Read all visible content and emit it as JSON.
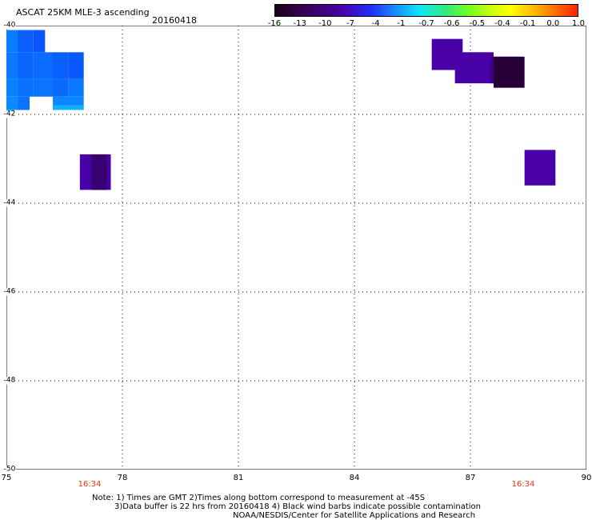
{
  "header": {
    "title": "ASCAT 25KM MLE-3 ascending",
    "date": "20160418"
  },
  "colorbar": {
    "labels": [
      "-16",
      "-13",
      "-10",
      "-7",
      "-4",
      "-1",
      "-0.7",
      "-0.6",
      "-0.5",
      "-0.4",
      "-0.1",
      "0.0",
      "1.0"
    ]
  },
  "axes": {
    "lon_ticks": [
      "75",
      "78",
      "81",
      "84",
      "87",
      "90"
    ],
    "lat_ticks": [
      "-40",
      "-42",
      "-44",
      "-46",
      "-48",
      "-50"
    ],
    "xlim": [
      75,
      90
    ],
    "ylim": [
      -50,
      -40
    ]
  },
  "times": [
    "16:34",
    "16:34"
  ],
  "notes": {
    "line1": "Note: 1) Times are GMT 2)Times along bottom correspond to measurement at -45S",
    "line2": "3)Data buffer is 22 hrs from 20160418 4) Black wind barbs indicate possible contamination",
    "line3": "NOAA/NESDIS/Center for Satellite Applications and Research"
  },
  "colors": {
    "grid": "#000000",
    "time_label": "#e83010"
  },
  "map_data": {
    "type": "heatmap",
    "cells": [
      {
        "lon0": 75.0,
        "lon1": 75.3,
        "lat0": -40.1,
        "lat1": -40.6,
        "color": "#0a7cff"
      },
      {
        "lon0": 75.3,
        "lon1": 75.7,
        "lat0": -40.1,
        "lat1": -40.6,
        "color": "#0a60ff"
      },
      {
        "lon0": 75.7,
        "lon1": 76.0,
        "lat0": -40.1,
        "lat1": -40.6,
        "color": "#0a55ff"
      },
      {
        "lon0": 75.0,
        "lon1": 75.3,
        "lat0": -40.6,
        "lat1": -41.2,
        "color": "#0a78ff"
      },
      {
        "lon0": 75.3,
        "lon1": 75.7,
        "lat0": -40.6,
        "lat1": -41.2,
        "color": "#0a64ff"
      },
      {
        "lon0": 75.7,
        "lon1": 76.2,
        "lat0": -40.6,
        "lat1": -41.2,
        "color": "#0a6cff"
      },
      {
        "lon0": 76.2,
        "lon1": 76.6,
        "lat0": -40.6,
        "lat1": -41.2,
        "color": "#0a60ff"
      },
      {
        "lon0": 76.6,
        "lon1": 77.0,
        "lat0": -40.6,
        "lat1": -41.2,
        "color": "#0a58ff"
      },
      {
        "lon0": 75.0,
        "lon1": 75.3,
        "lat0": -41.2,
        "lat1": -41.6,
        "color": "#0a82ff"
      },
      {
        "lon0": 75.3,
        "lon1": 75.7,
        "lat0": -41.2,
        "lat1": -41.6,
        "color": "#0a70ff"
      },
      {
        "lon0": 75.7,
        "lon1": 76.2,
        "lat0": -41.2,
        "lat1": -41.6,
        "color": "#0a74ff"
      },
      {
        "lon0": 76.2,
        "lon1": 76.6,
        "lat0": -41.2,
        "lat1": -41.6,
        "color": "#0a6aff"
      },
      {
        "lon0": 76.6,
        "lon1": 77.0,
        "lat0": -41.2,
        "lat1": -41.6,
        "color": "#0a78ff"
      },
      {
        "lon0": 75.0,
        "lon1": 75.3,
        "lat0": -41.6,
        "lat1": -41.9,
        "color": "#0a8cff"
      },
      {
        "lon0": 75.3,
        "lon1": 75.6,
        "lat0": -41.6,
        "lat1": -41.9,
        "color": "#0a74ff"
      },
      {
        "lon0": 76.2,
        "lon1": 77.0,
        "lat0": -41.6,
        "lat1": -41.8,
        "color": "#0a88ff"
      },
      {
        "lon0": 76.2,
        "lon1": 77.0,
        "lat0": -41.8,
        "lat1": -41.9,
        "color": "#10b0ff"
      },
      {
        "lon0": 75.0,
        "lon1": 75.2,
        "lat0": -41.9,
        "lat1": -42.0,
        "color": "#10d8f0"
      },
      {
        "lon0": 76.9,
        "lon1": 77.7,
        "lat0": -42.9,
        "lat1": -43.7,
        "color": "#4a00a8"
      },
      {
        "lon0": 77.2,
        "lon1": 77.6,
        "lat0": -42.9,
        "lat1": -43.7,
        "color": "#380070"
      },
      {
        "lon0": 86.0,
        "lon1": 86.8,
        "lat0": -40.3,
        "lat1": -41.0,
        "color": "#4a00a8"
      },
      {
        "lon0": 86.6,
        "lon1": 87.6,
        "lat0": -40.6,
        "lat1": -41.3,
        "color": "#4800a8"
      },
      {
        "lon0": 87.5,
        "lon1": 88.3,
        "lat0": -40.7,
        "lat1": -41.3,
        "color": "#3c0088"
      },
      {
        "lon0": 87.6,
        "lon1": 88.4,
        "lat0": -40.7,
        "lat1": -41.4,
        "color": "#2a0038"
      },
      {
        "lon0": 88.4,
        "lon1": 89.2,
        "lat0": -42.8,
        "lat1": -43.6,
        "color": "#4a00a8"
      }
    ]
  }
}
